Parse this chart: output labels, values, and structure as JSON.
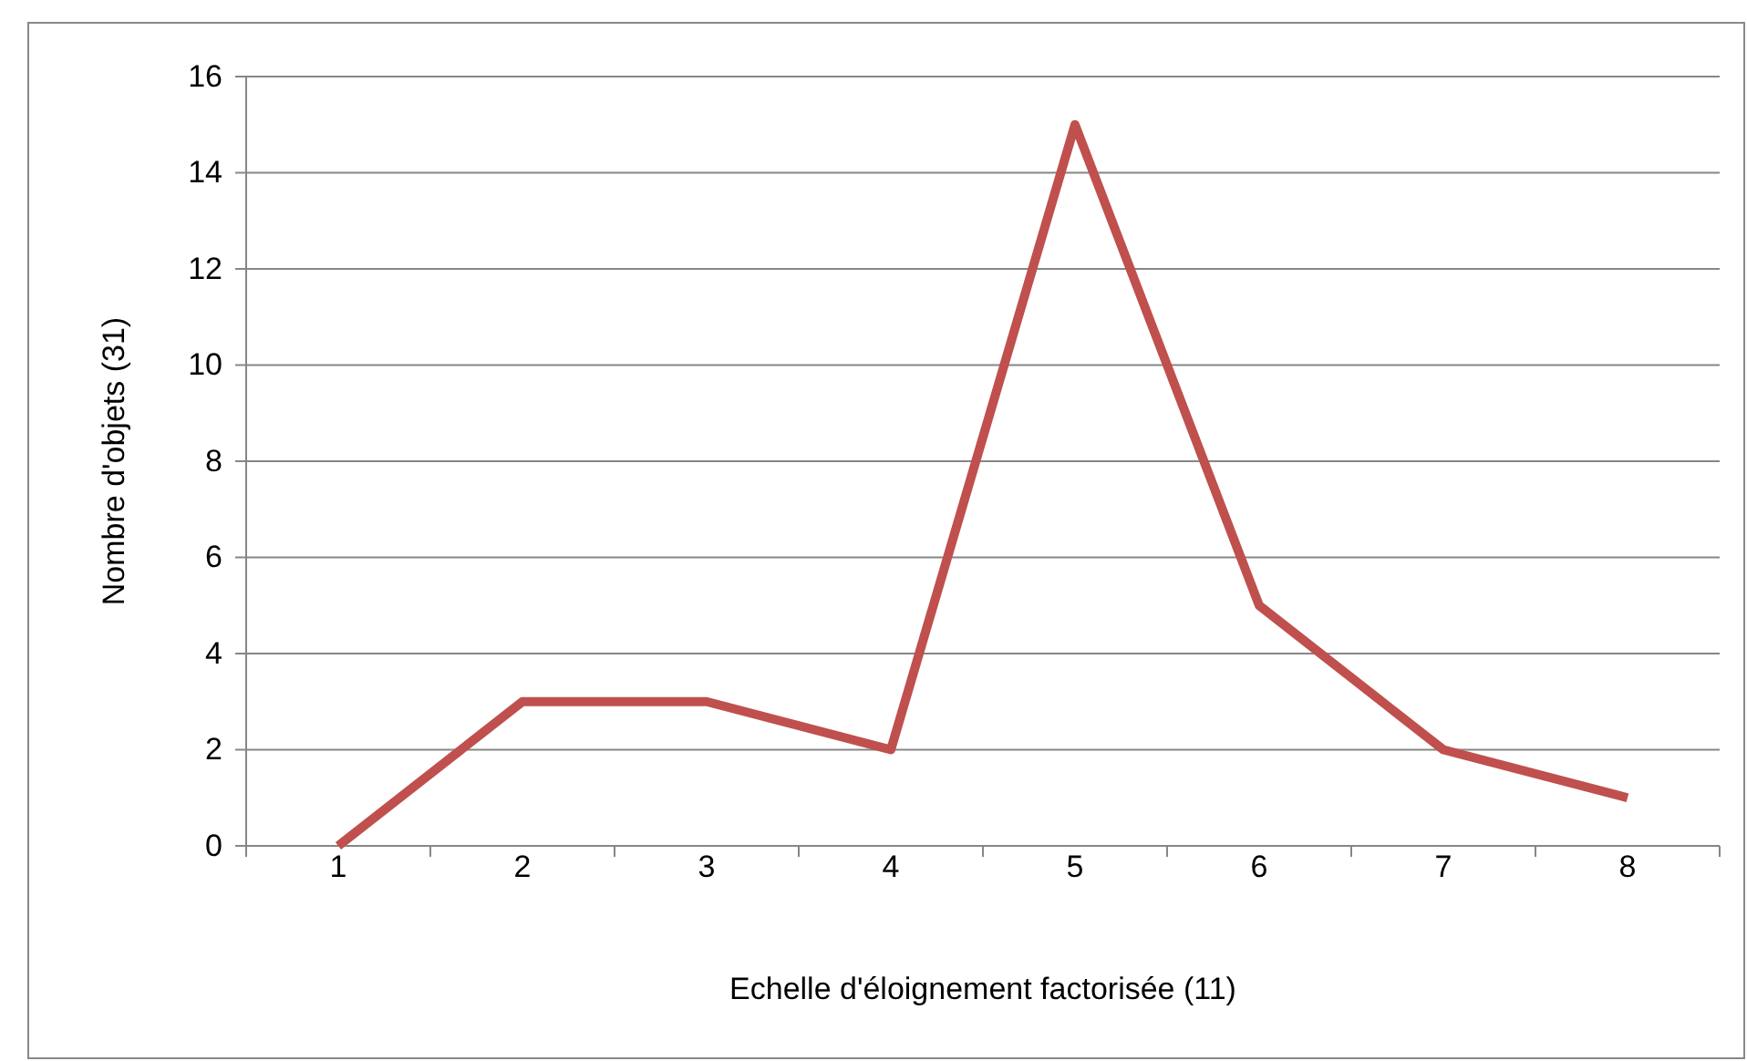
{
  "chart_data": {
    "type": "line",
    "xlabel": "Echelle d'éloignement factorisée (11)",
    "ylabel": "Nombre d'objets (31)",
    "categories": [
      "1",
      "2",
      "3",
      "4",
      "5",
      "6",
      "7",
      "8"
    ],
    "series": [
      {
        "color": "#c0504d",
        "values": [
          0,
          3,
          3,
          2,
          15,
          5,
          2,
          1
        ]
      }
    ],
    "ylim": [
      0,
      16
    ],
    "yticks": [
      0,
      2,
      4,
      6,
      8,
      10,
      12,
      14,
      16
    ],
    "grid": "y",
    "marker": "none",
    "line_style": "solid"
  }
}
